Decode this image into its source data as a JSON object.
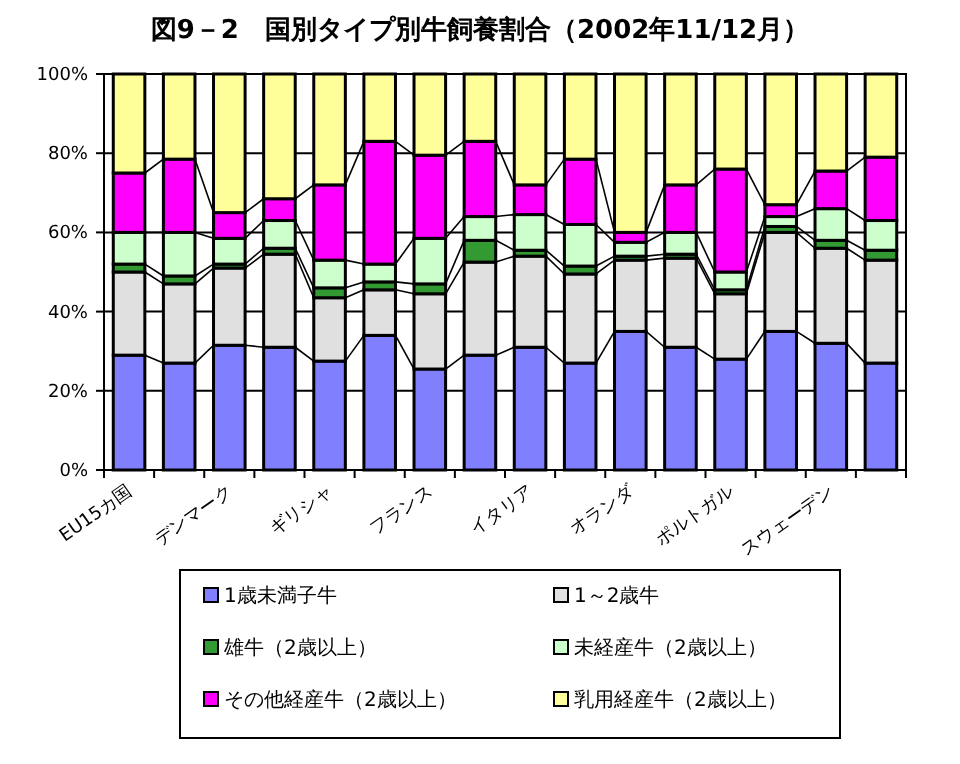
{
  "chart_data": {
    "type": "bar",
    "title": "図9－2　国別タイプ別牛飼養割合（2002年11/12月）",
    "categories": [
      "EU15カ国",
      null,
      "デンマーク",
      null,
      "ギリシャ",
      null,
      "フランス",
      null,
      "イタリア",
      null,
      "オランダ",
      null,
      "ポルトガル",
      null,
      "スウェーデン",
      null
    ],
    "series": [
      {
        "name": "1歳未満子牛",
        "color": "#8080ff",
        "values": [
          29,
          27,
          31.5,
          31,
          27.5,
          34,
          25.5,
          29,
          31,
          27,
          35,
          31,
          28,
          35,
          32,
          27
        ]
      },
      {
        "name": "1～2歳牛",
        "color": "#e0e0e0",
        "values": [
          21,
          20,
          19.5,
          23.5,
          16,
          11.5,
          19,
          23.5,
          23,
          22.5,
          18,
          22.5,
          16.5,
          25,
          24,
          26
        ]
      },
      {
        "name": "雄牛（2歳以上）",
        "color": "#339933",
        "values": [
          2,
          2,
          1,
          1.5,
          2.5,
          2,
          2.5,
          5.5,
          1.5,
          2,
          1,
          1,
          1,
          1.5,
          2,
          2.5
        ]
      },
      {
        "name": "未経産牛（2歳以上）",
        "color": "#ccffcc",
        "values": [
          8,
          11,
          6.5,
          7,
          7,
          4.5,
          11.5,
          6,
          9,
          10.5,
          3.5,
          5.5,
          4.5,
          2.5,
          8,
          7.5
        ]
      },
      {
        "name": "その他経産牛（2歳以上）",
        "color": "#ff00ff",
        "values": [
          15,
          18.5,
          6.5,
          5.5,
          19,
          31,
          21,
          19,
          7.5,
          16.5,
          2.5,
          12,
          26,
          3,
          9.5,
          16
        ]
      },
      {
        "name": "乳用経産牛（2歳以上）",
        "color": "#ffff99",
        "values": [
          25,
          21.5,
          35,
          31.5,
          28,
          17,
          20.5,
          17,
          28,
          21.5,
          40,
          28,
          24,
          33,
          24.5,
          21
        ]
      }
    ],
    "stacked": true,
    "ylim": [
      0,
      100
    ],
    "yticks": [
      {
        "value": 0,
        "label": "0%"
      },
      {
        "value": 20,
        "label": "20%"
      },
      {
        "value": 40,
        "label": "40%"
      },
      {
        "value": 60,
        "label": "60%"
      },
      {
        "value": 80,
        "label": "80%"
      },
      {
        "value": 100,
        "label": "100%"
      }
    ],
    "grid": "y",
    "legend": "bottom"
  }
}
